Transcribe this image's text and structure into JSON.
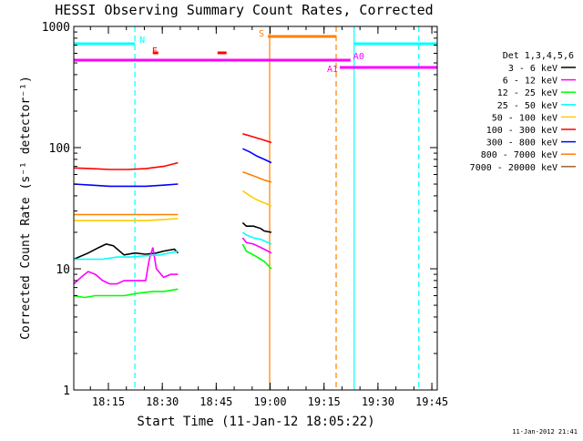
{
  "footer_timestamp": "11-Jan-2012 21:41",
  "chart_data": {
    "type": "line",
    "title": "HESSI Observing Summary Count Rates, Corrected",
    "xlabel": "Start Time (11-Jan-12 18:05:22)",
    "ylabel": "Corrected Count Rate (s⁻¹ detector⁻¹)",
    "xlim": [
      "18:05:22",
      "19:46:30"
    ],
    "ylim": [
      1,
      1000
    ],
    "yscale": "log",
    "grid": false,
    "legend_position": "right",
    "legend_title": "Det 1,3,4,5,6",
    "xtick_labels": [
      "18:15",
      "18:30",
      "18:45",
      "19:00",
      "19:15",
      "19:30",
      "19:45"
    ],
    "xtick_minutes": [
      9.63,
      24.63,
      39.63,
      54.63,
      69.63,
      84.63,
      99.63
    ],
    "ytick_labels": [
      "1",
      "10",
      "100",
      "1000"
    ],
    "ytick_values": [
      1,
      10,
      100,
      1000
    ],
    "x_unit": "minutes since 18:05:22",
    "series": [
      {
        "name": "3 - 6 keV",
        "color": "#000000",
        "segments": [
          [
            [
              0,
              12
            ],
            [
              4,
              13.5
            ],
            [
              7,
              15
            ],
            [
              9,
              16
            ],
            [
              11,
              15.5
            ],
            [
              14,
              13
            ],
            [
              17,
              13.5
            ],
            [
              20,
              13.2
            ],
            [
              23,
              13.5
            ],
            [
              25,
              14
            ],
            [
              28,
              14.5
            ],
            [
              29,
              13.5
            ]
          ],
          [
            [
              47,
              24
            ],
            [
              48,
              22.5
            ],
            [
              50,
              22.5
            ],
            [
              52,
              21.5
            ],
            [
              53,
              20.5
            ],
            [
              55,
              20
            ]
          ]
        ]
      },
      {
        "name": "6 - 12 keV",
        "color": "#ff00ff",
        "segments": [
          [
            [
              0,
              7.5
            ],
            [
              2,
              8.5
            ],
            [
              4,
              9.5
            ],
            [
              6,
              9
            ],
            [
              8,
              8
            ],
            [
              10,
              7.5
            ],
            [
              12,
              7.5
            ],
            [
              14,
              8
            ],
            [
              16,
              8
            ],
            [
              18,
              8
            ],
            [
              20,
              8
            ],
            [
              21,
              12
            ],
            [
              22,
              15
            ],
            [
              23,
              10
            ],
            [
              25,
              8.5
            ],
            [
              27,
              9
            ],
            [
              29,
              9
            ]
          ],
          [
            [
              47,
              18
            ],
            [
              48,
              16.5
            ],
            [
              50,
              16
            ],
            [
              52,
              15
            ],
            [
              53,
              14.5
            ],
            [
              55,
              13.5
            ]
          ]
        ]
      },
      {
        "name": "12 - 25 keV",
        "color": "#00ff00",
        "segments": [
          [
            [
              0,
              6
            ],
            [
              3,
              5.8
            ],
            [
              6,
              6
            ],
            [
              10,
              6
            ],
            [
              14,
              6
            ],
            [
              18,
              6.3
            ],
            [
              22,
              6.5
            ],
            [
              25,
              6.5
            ],
            [
              29,
              6.8
            ]
          ],
          [
            [
              47,
              16
            ],
            [
              48,
              14
            ],
            [
              50,
              13
            ],
            [
              52,
              12
            ],
            [
              53,
              11.5
            ],
            [
              55,
              10
            ]
          ]
        ]
      },
      {
        "name": "25 - 50 keV",
        "color": "#00ffff",
        "segments": [
          [
            [
              0,
              12
            ],
            [
              4,
              12
            ],
            [
              8,
              12
            ],
            [
              12,
              12.5
            ],
            [
              16,
              12.5
            ],
            [
              20,
              12.8
            ],
            [
              24,
              13
            ],
            [
              29,
              14
            ]
          ],
          [
            [
              47,
              20
            ],
            [
              48,
              19
            ],
            [
              50,
              18
            ],
            [
              52,
              17.5
            ],
            [
              53,
              17
            ],
            [
              55,
              16
            ]
          ]
        ]
      },
      {
        "name": "50 - 100 keV",
        "color": "#ffcc00",
        "segments": [
          [
            [
              0,
              25
            ],
            [
              5,
              25
            ],
            [
              10,
              25
            ],
            [
              15,
              25
            ],
            [
              20,
              25
            ],
            [
              25,
              25.5
            ],
            [
              29,
              26
            ]
          ],
          [
            [
              47,
              44
            ],
            [
              49,
              40
            ],
            [
              51,
              37
            ],
            [
              53,
              35
            ],
            [
              55,
              33
            ]
          ]
        ]
      },
      {
        "name": "100 - 300 keV",
        "color": "#ff0000",
        "segments": [
          [
            [
              0,
              68
            ],
            [
              5,
              67
            ],
            [
              10,
              66
            ],
            [
              15,
              66
            ],
            [
              20,
              67
            ],
            [
              25,
              70
            ],
            [
              29,
              75
            ]
          ],
          [
            [
              47,
              130
            ],
            [
              49,
              125
            ],
            [
              51,
              120
            ],
            [
              53,
              115
            ],
            [
              55,
              110
            ]
          ]
        ]
      },
      {
        "name": "300 - 800 keV",
        "color": "#0000ff",
        "segments": [
          [
            [
              0,
              50
            ],
            [
              5,
              49
            ],
            [
              10,
              48
            ],
            [
              15,
              48
            ],
            [
              20,
              48
            ],
            [
              25,
              49
            ],
            [
              29,
              50
            ]
          ],
          [
            [
              47,
              98
            ],
            [
              49,
              92
            ],
            [
              51,
              85
            ],
            [
              53,
              80
            ],
            [
              55,
              75
            ]
          ]
        ]
      },
      {
        "name": "800 - 7000 keV",
        "color": "#ff8000",
        "segments": [
          [
            [
              0,
              28
            ],
            [
              5,
              28
            ],
            [
              10,
              28
            ],
            [
              15,
              28
            ],
            [
              20,
              28
            ],
            [
              25,
              28
            ],
            [
              29,
              28
            ]
          ],
          [
            [
              47,
              63
            ],
            [
              49,
              60
            ],
            [
              51,
              57
            ],
            [
              53,
              54
            ],
            [
              55,
              52
            ]
          ]
        ]
      },
      {
        "name": "7000 - 20000 keV",
        "color": "#996633",
        "segments": []
      }
    ],
    "state_bars": [
      {
        "label": "N",
        "color": "#00ffff",
        "from": 0,
        "to": 17
      },
      {
        "label": "N",
        "color": "#00ffff",
        "from": 78,
        "to": 101
      },
      {
        "label": "F",
        "color": "#ff0000",
        "from": 22,
        "to": 23.5
      },
      {
        "label": "",
        "color": "#ff0000",
        "from": 40,
        "to": 42.5
      },
      {
        "label": "S",
        "color": "#ff8000",
        "from": 54,
        "to": 73
      },
      {
        "label": "A0",
        "color": "#ff00ff",
        "from": 0,
        "to": 77
      },
      {
        "label": "A1",
        "color": "#ff00ff",
        "from": 74,
        "to": 101
      }
    ],
    "vertical_markers": [
      {
        "minute": 17,
        "color": "#00ffff",
        "style": "dashed"
      },
      {
        "minute": 54.5,
        "color": "#ff8000",
        "style": "solid"
      },
      {
        "minute": 73,
        "color": "#ff8000",
        "style": "dashed"
      },
      {
        "minute": 78,
        "color": "#00ffff",
        "style": "solid"
      },
      {
        "minute": 96,
        "color": "#00ffff",
        "style": "dashed"
      }
    ]
  }
}
